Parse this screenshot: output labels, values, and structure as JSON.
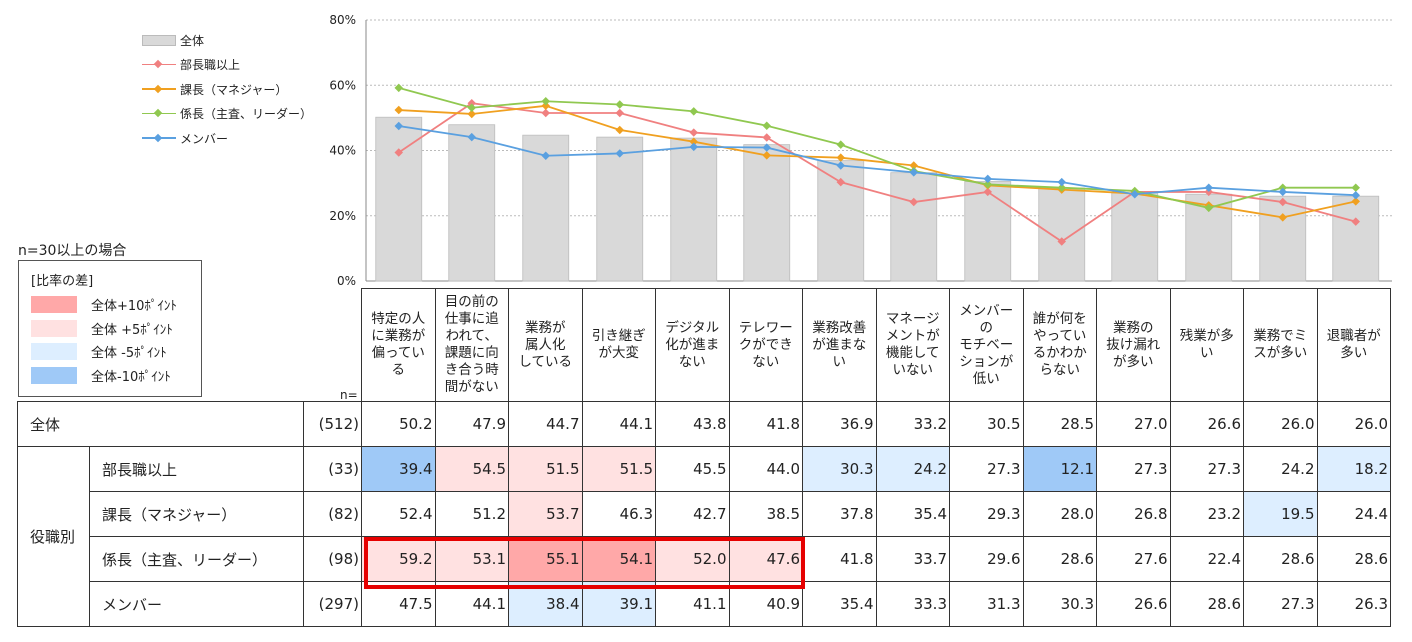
{
  "chart_data": {
    "type": "bar+line",
    "ylim": [
      0,
      80
    ],
    "yticks": [
      "0%",
      "20%",
      "40%",
      "60%",
      "80%"
    ],
    "grid": true,
    "legend_position": "top-left",
    "categories": [
      "特定の人に業務が偏っている",
      "目の前の仕事に追われて、課題に向き合う時間がない",
      "業務が属人化している",
      "引き継ぎが大変",
      "デジタル化が進まない",
      "テレワークができない",
      "業務改善が進まない",
      "マネージメントが機能していない",
      "メンバーのモチベーションが低い",
      "誰が何をやっているかわからない",
      "業務の抜け漏れが多い",
      "残業が多い",
      "業務でミスが多い",
      "退職者が多い"
    ],
    "category_lines": [
      [
        "特定の人",
        "に業務が",
        "偏ってい",
        "る"
      ],
      [
        "目の前の",
        "仕事に追",
        "われて、",
        "課題に向",
        "き合う時",
        "間がない"
      ],
      [
        "業務が",
        "属人化",
        "している"
      ],
      [
        "引き継ぎ",
        "が大変"
      ],
      [
        "デジタル",
        "化が進ま",
        "ない"
      ],
      [
        "テレワー",
        "クができ",
        "ない"
      ],
      [
        "業務改善",
        "が進まな",
        "い"
      ],
      [
        "マネージ",
        "メントが",
        "機能して",
        "いない"
      ],
      [
        "メンバー",
        "の",
        "モチベー",
        "ションが",
        "低い"
      ],
      [
        "誰が何を",
        "やってい",
        "るかわか",
        "らない"
      ],
      [
        "業務の",
        "抜け漏れ",
        "が多い"
      ],
      [
        "残業が多",
        "い"
      ],
      [
        "業務でミ",
        "スが多い"
      ],
      [
        "退職者が",
        "多い"
      ]
    ],
    "series": [
      {
        "name": "全体",
        "kind": "bar",
        "n": "(512)",
        "color": "#d9d9d9",
        "values": [
          50.2,
          47.9,
          44.7,
          44.1,
          43.8,
          41.8,
          36.9,
          33.2,
          30.5,
          28.5,
          27.0,
          26.6,
          26.0,
          26.0
        ]
      },
      {
        "name": "部長職以上",
        "kind": "line",
        "n": "(33)",
        "color": "#f08080",
        "values": [
          39.4,
          54.5,
          51.5,
          51.5,
          45.5,
          44.0,
          30.3,
          24.2,
          27.3,
          12.1,
          27.3,
          27.3,
          24.2,
          18.2
        ]
      },
      {
        "name": "課長（マネジャー）",
        "kind": "line",
        "n": "(82)",
        "color": "#f0a020",
        "values": [
          52.4,
          51.2,
          53.7,
          46.3,
          42.7,
          38.5,
          37.8,
          35.4,
          29.3,
          28.0,
          26.8,
          23.2,
          19.5,
          24.4
        ]
      },
      {
        "name": "係長（主査、リーダー）",
        "kind": "line",
        "n": "(98)",
        "color": "#90c850",
        "values": [
          59.2,
          53.1,
          55.1,
          54.1,
          52.0,
          47.6,
          41.8,
          33.7,
          29.6,
          28.6,
          27.6,
          22.4,
          28.6,
          28.6
        ]
      },
      {
        "name": "メンバー",
        "kind": "line",
        "n": "(297)",
        "color": "#5aa0e0",
        "values": [
          47.5,
          44.1,
          38.4,
          39.1,
          41.1,
          40.9,
          35.4,
          33.3,
          31.3,
          30.3,
          26.6,
          28.6,
          27.3,
          26.3
        ]
      }
    ]
  },
  "table": {
    "n_label": "n=",
    "group_label": "役職別",
    "total_label": "全体"
  },
  "notes": {
    "n_condition": "n=30以上の場合",
    "diff_title": "[比率の差]",
    "diff_items": [
      {
        "label": "全体+10ﾎﾟｲﾝﾄ",
        "color": "#ffa8a8"
      },
      {
        "label": "全体 +5ﾎﾟｲﾝﾄ",
        "color": "#ffe1e1"
      },
      {
        "label": "全体 -5ﾎﾟｲﾝﾄ",
        "color": "#ddeeff"
      },
      {
        "label": "全体-10ﾎﾟｲﾝﾄ",
        "color": "#9fc9f7"
      }
    ]
  },
  "colors": {
    "gridline": "#bbbbbb",
    "highlight_box": "#e60000"
  }
}
